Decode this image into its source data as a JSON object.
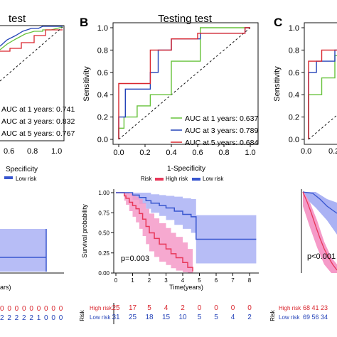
{
  "panels": {
    "left_title": "test",
    "b_letter": "B",
    "b_title": "Testing test",
    "c_letter": "C"
  },
  "colors": {
    "green": "#66c23a",
    "blue": "#2342b8",
    "red": "#d9262e",
    "high": "#e8385a",
    "low": "#3856cf",
    "high_band": "#f59ac8",
    "low_band": "#aab2f4"
  },
  "left_auc": [
    "AUC at 1 years: 0.741",
    "AUC at 3 years: 0.832",
    "AUC at 5 years: 0.767"
  ],
  "left_risk": {
    "high": "0 0 0 0 0 0 0 0 0",
    "low": "2 2 2 2 2 1 0 0 0",
    "xlabel": "ars)"
  },
  "legend": {
    "title": "Risk",
    "high": "High risk",
    "low": "Low risk",
    "partial_left": "Specificity",
    "partial_left_low": "Low risk"
  },
  "survival_b": {
    "ylabel": "Survival probability",
    "xlabel": "Time(years)",
    "pvalue": "p=0.003"
  },
  "risk_table_b": {
    "title": "Risk",
    "high_label": "High risk",
    "low_label": "Low risk",
    "high": [
      "25",
      "17",
      "5",
      "4",
      "2",
      "0",
      "0",
      "0",
      "0"
    ],
    "low": [
      "31",
      "25",
      "18",
      "15",
      "10",
      "5",
      "5",
      "4",
      "2"
    ]
  },
  "survival_c": {
    "pvalue": "p<0.001",
    "risk_title": "Risk",
    "high_label": "High risk",
    "low_label": "Low risk",
    "high_partial": "68 41 23",
    "low_partial": "69 56 34"
  },
  "chart_data": [
    {
      "type": "line",
      "panel": "B",
      "title": "Testing test",
      "xlabel": "1-Specificity",
      "ylabel": "Sensitivity",
      "xlim": [
        0,
        1
      ],
      "ylim": [
        0,
        1
      ],
      "xticks": [
        "0.0",
        "0.2",
        "0.4",
        "0.6",
        "0.8",
        "1.0"
      ],
      "yticks": [
        "0.0",
        "0.2",
        "0.4",
        "0.6",
        "0.8",
        "1.0"
      ],
      "legend_position": "bottom-right",
      "series": [
        {
          "name": "AUC at 1 years: 0.637",
          "color": "#66c23a",
          "x": [
            0,
            0,
            0.04,
            0.04,
            0.14,
            0.14,
            0.24,
            0.24,
            0.4,
            0.4,
            0.62,
            0.62,
            1
          ],
          "y": [
            0,
            0.1,
            0.1,
            0.2,
            0.2,
            0.3,
            0.3,
            0.4,
            0.4,
            0.7,
            0.7,
            1,
            1
          ]
        },
        {
          "name": "AUC at 3 years: 0.789",
          "color": "#2342b8",
          "x": [
            0,
            0,
            0.05,
            0.05,
            0.24,
            0.24,
            0.3,
            0.3,
            0.4,
            0.4,
            0.62,
            0.62,
            0.96,
            0.96,
            1
          ],
          "y": [
            0,
            0.2,
            0.2,
            0.45,
            0.45,
            0.6,
            0.6,
            0.8,
            0.8,
            0.9,
            0.9,
            0.95,
            0.95,
            1,
            1
          ]
        },
        {
          "name": "AUC at 5 years: 0.684",
          "color": "#d9262e",
          "x": [
            0,
            0,
            0.24,
            0.24,
            0.4,
            0.4,
            0.6,
            0.6,
            0.96,
            0.96,
            1
          ],
          "y": [
            0,
            0.5,
            0.5,
            0.8,
            0.8,
            0.9,
            0.9,
            0.95,
            0.95,
            1,
            1
          ]
        }
      ]
    },
    {
      "type": "line",
      "panel": "left-partial",
      "xticks": [
        "0.6",
        "0.8",
        "1.0"
      ],
      "legend_position": "bottom-right",
      "series": [
        {
          "name": "AUC at 1 years: 0.741",
          "color": "#66c23a"
        },
        {
          "name": "AUC at 3 years: 0.832",
          "color": "#2342b8"
        },
        {
          "name": "AUC at 5 years: 0.767",
          "color": "#d9262e"
        }
      ]
    },
    {
      "type": "line",
      "panel": "B-survival",
      "xlabel": "Time(years)",
      "ylabel": "Survival probability",
      "xlim": [
        0,
        8.5
      ],
      "ylim": [
        0,
        1
      ],
      "xticks": [
        "0",
        "1",
        "2",
        "3",
        "4",
        "5",
        "6",
        "7",
        "8"
      ],
      "yticks": [
        "0.00",
        "0.25",
        "0.50",
        "0.75",
        "1.00"
      ],
      "annotation": "p=0.003",
      "series": [
        {
          "name": "High risk",
          "color": "#e8385a",
          "x": [
            0,
            0.5,
            0.6,
            0.8,
            1.0,
            1.2,
            1.4,
            1.6,
            1.8,
            2.0,
            2.3,
            2.6,
            3.0,
            3.3,
            3.6,
            4.0,
            4.3,
            4.6
          ],
          "y": [
            1,
            0.96,
            0.93,
            0.88,
            0.84,
            0.8,
            0.74,
            0.67,
            0.58,
            0.5,
            0.43,
            0.36,
            0.3,
            0.24,
            0.19,
            0.13,
            0.07,
            0.02
          ],
          "ci_low": [
            1,
            0.9,
            0.85,
            0.77,
            0.7,
            0.63,
            0.55,
            0.46,
            0.36,
            0.27,
            0.2,
            0.14,
            0.1,
            0.06,
            0.03,
            0.01,
            0,
            0
          ],
          "ci_high": [
            1,
            1,
            1,
            0.99,
            0.97,
            0.95,
            0.92,
            0.87,
            0.8,
            0.74,
            0.68,
            0.62,
            0.56,
            0.5,
            0.45,
            0.38,
            0.3,
            0.2
          ]
        },
        {
          "name": "Low risk",
          "color": "#3856cf",
          "x": [
            0,
            1.0,
            1.4,
            1.8,
            2.1,
            2.6,
            3.0,
            3.5,
            4.0,
            4.5,
            4.8,
            8.4
          ],
          "y": [
            1,
            0.97,
            0.94,
            0.9,
            0.87,
            0.84,
            0.81,
            0.77,
            0.73,
            0.7,
            0.42,
            0.42
          ],
          "ci_low": [
            1,
            0.91,
            0.86,
            0.8,
            0.75,
            0.71,
            0.66,
            0.6,
            0.55,
            0.5,
            0.12,
            0.12
          ],
          "ci_high": [
            1,
            1,
            1,
            1,
            0.98,
            0.97,
            0.96,
            0.95,
            0.93,
            0.92,
            0.72,
            0.72
          ]
        }
      ]
    },
    {
      "type": "line",
      "panel": "C",
      "yticks": [
        "0.0",
        "0.2",
        "0.4",
        "0.6",
        "0.8",
        "1.0"
      ],
      "ylabel": "Sensitivity",
      "xticks": [
        "0.0",
        "0.2"
      ],
      "series": [
        {
          "name": "green",
          "color": "#66c23a",
          "x": [
            0,
            0,
            0.1,
            0.1,
            0.2,
            0.2,
            0.3,
            0.3
          ],
          "y": [
            0,
            0.4,
            0.4,
            0.55,
            0.55,
            0.75,
            0.75,
            0.8
          ]
        },
        {
          "name": "blue",
          "color": "#2342b8",
          "x": [
            0,
            0,
            0.06,
            0.06,
            0.2,
            0.2,
            0.3,
            0.3
          ],
          "y": [
            0,
            0.6,
            0.6,
            0.7,
            0.7,
            0.8,
            0.8,
            0.85
          ]
        },
        {
          "name": "red",
          "color": "#d9262e",
          "x": [
            0,
            0,
            0.1,
            0.1,
            0.3
          ],
          "y": [
            0,
            0.7,
            0.7,
            0.8,
            0.8
          ]
        }
      ]
    }
  ]
}
